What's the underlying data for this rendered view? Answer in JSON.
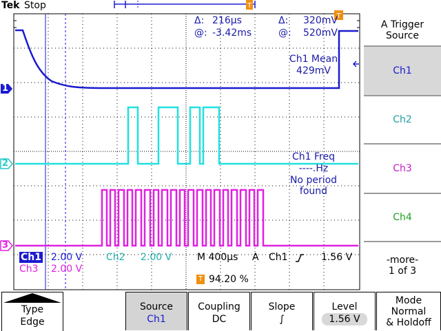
{
  "header": {
    "brand": "Tek",
    "state": "Stop"
  },
  "measurements": {
    "delta_time": "216µs",
    "delta_volt": "320mV",
    "at_time": "-3.42ms",
    "at_volt": "520mV",
    "delta_symbol": "Δ:",
    "at_symbol": "@:"
  },
  "overlays": {
    "ch1_mean_label": "Ch1 Mean",
    "ch1_mean_value": "429mV",
    "ch1_freq_label": "Ch1 Freq",
    "ch1_freq_value": "----.Hz",
    "no_period_line1": "No period",
    "no_period_line2": "found"
  },
  "channel_markers": {
    "ch1": "1",
    "ch2": "2",
    "ch3": "3"
  },
  "status": {
    "ch1_label": "Ch1",
    "ch1_scale": "2.00 V",
    "ch2_label": "Ch2",
    "ch2_scale": "2.00 V",
    "ch3_label": "Ch3",
    "ch3_scale": "2.00 V",
    "timebase": "M 400µs",
    "trigger_mode": "A",
    "trigger_source": "Ch1",
    "trigger_level": "1.56 V",
    "trigger_pos_marker": "T",
    "trigger_pos_value": "94.20 %"
  },
  "side_menu": {
    "title_line1": "A Trigger",
    "title_line2": "Source",
    "items": [
      "Ch1",
      "Ch2",
      "Ch3",
      "Ch4"
    ],
    "more_line1": "-more-",
    "more_line2": "1 of 3"
  },
  "bottom_menu": {
    "type_label": "Type",
    "type_value": "Edge",
    "source_label": "Source",
    "source_value": "Ch1",
    "coupling_label": "Coupling",
    "coupling_value": "DC",
    "slope_label": "Slope",
    "slope_value": "∫",
    "level_label": "Level",
    "level_value": "1.56 V",
    "mode_label": "Mode",
    "mode_value1": "Normal",
    "mode_value2": "& Holdoff"
  },
  "colors": {
    "ch1": "#1a1ad0",
    "ch2": "#20e0e0",
    "ch3": "#e020e0",
    "trigger": "#f09010",
    "grid": "#000000"
  }
}
